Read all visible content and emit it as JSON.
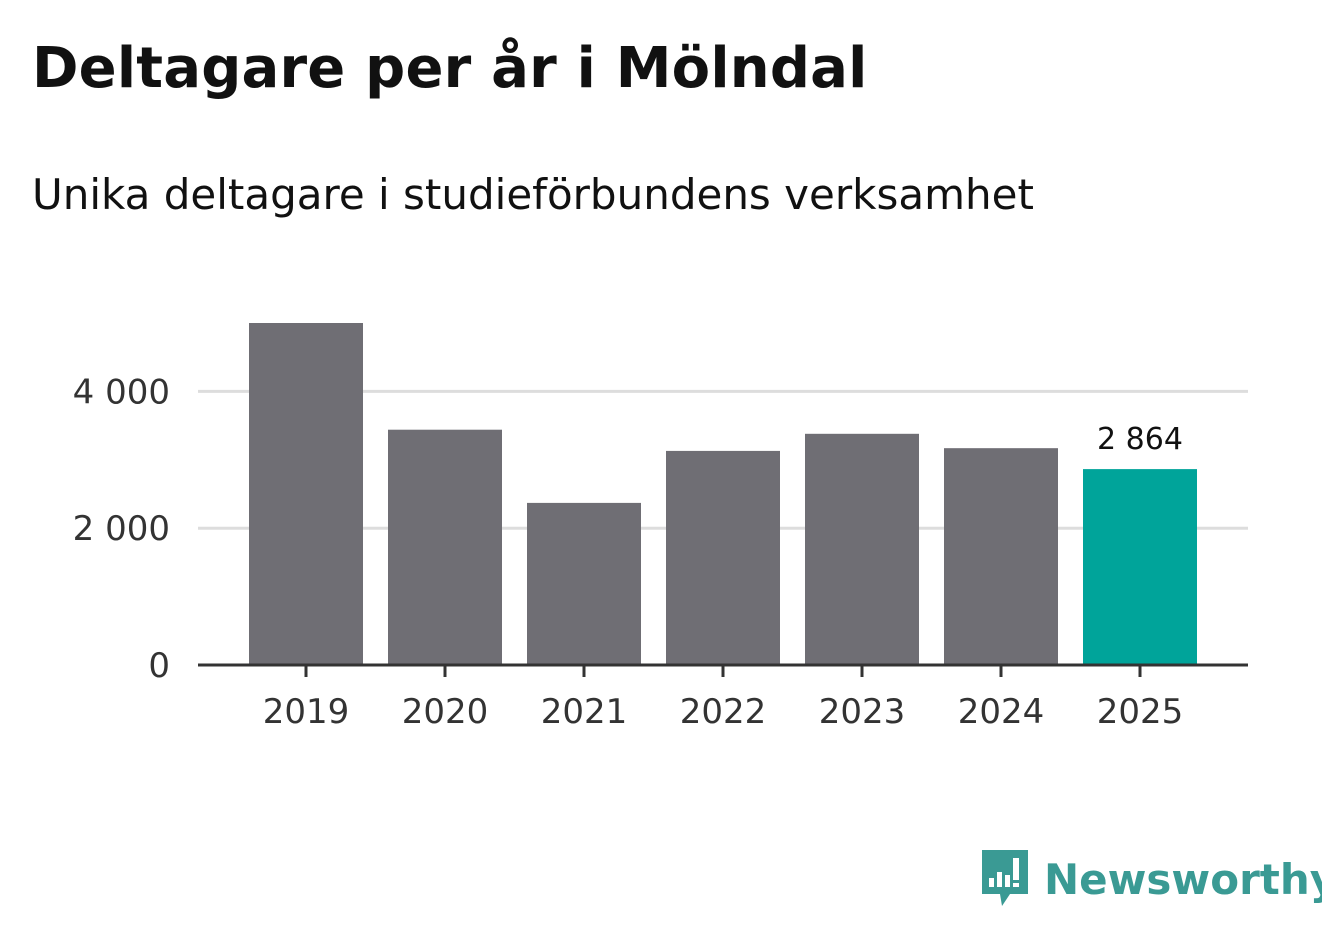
{
  "colors": {
    "bar_default": "#6f6e74",
    "bar_highlight": "#00a49a",
    "grid": "#dddddd",
    "axis": "#333333",
    "logo": "#3a9a94"
  },
  "branding": {
    "name": "Newsworthy"
  },
  "chart_data": {
    "type": "bar",
    "title": "Deltagare per år i Mölndal",
    "subtitle": "Unika deltagare i studieförbundens verksamhet",
    "categories": [
      "2019",
      "2020",
      "2021",
      "2022",
      "2023",
      "2024",
      "2025"
    ],
    "values": [
      5000,
      3440,
      2370,
      3130,
      3380,
      3170,
      2864
    ],
    "highlight_index": 6,
    "data_labels": {
      "2025": "2 864"
    },
    "ylim": [
      0,
      5000
    ],
    "yticks": [
      0,
      2000,
      4000
    ],
    "ytick_labels": [
      "0",
      "2 000",
      "4 000"
    ],
    "grid": true,
    "xlabel": "",
    "ylabel": ""
  }
}
